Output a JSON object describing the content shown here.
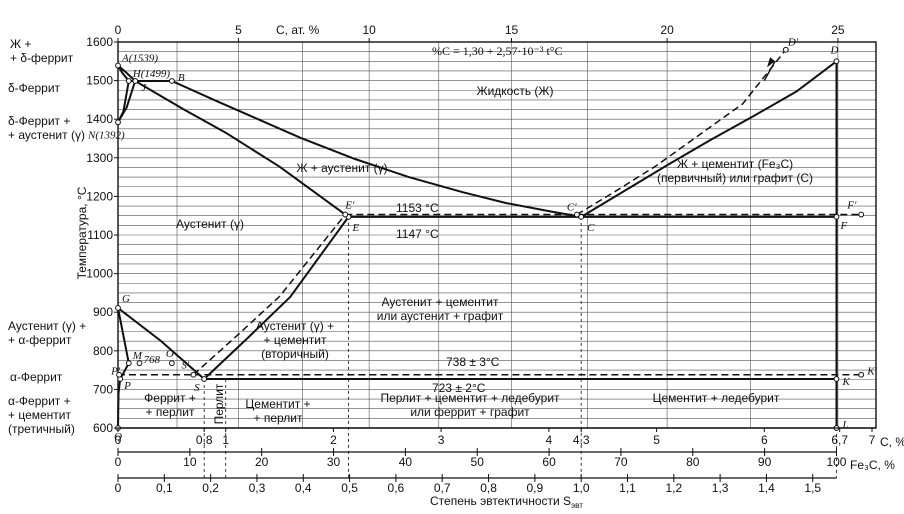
{
  "chart_data": {
    "type": "line",
    "title": "",
    "formula": "%C = 1,30 + 2,57·10⁻³ t°C",
    "ylabel": "Температура, °C",
    "ylim": [
      600,
      1600
    ],
    "y_ticks": [
      "600",
      "700",
      "800",
      "900",
      "1000",
      "1100",
      "1200",
      "1300",
      "1400",
      "1500",
      "1600"
    ],
    "x_main": {
      "label": "C, %",
      "range": [
        0,
        7
      ],
      "ticks": [
        {
          "v": 0,
          "t": "0"
        },
        {
          "v": 0.8,
          "t": "0,8"
        },
        {
          "v": 1,
          "t": "1"
        },
        {
          "v": 2,
          "t": "2"
        },
        {
          "v": 3,
          "t": "3"
        },
        {
          "v": 4,
          "t": "4"
        },
        {
          "v": 4.3,
          "t": "4,3"
        },
        {
          "v": 5,
          "t": "5"
        },
        {
          "v": 6,
          "t": "6"
        },
        {
          "v": 6.7,
          "t": "6,7"
        },
        {
          "v": 7,
          "t": "7"
        }
      ]
    },
    "x_top": {
      "label": "C, ат. %",
      "ticks": [
        {
          "v": 0,
          "t": "0"
        },
        {
          "v": 5,
          "t": "5"
        },
        {
          "v": 10,
          "t": "10"
        },
        {
          "v": 15,
          "t": "15"
        },
        {
          "v": 20,
          "t": "20"
        },
        {
          "v": 25,
          "t": "25"
        }
      ]
    },
    "x_fe3c": {
      "label": "Fe₃C, %",
      "ticks": [
        "0",
        "10",
        "20",
        "30",
        "40",
        "50",
        "60",
        "70",
        "80",
        "90",
        "100"
      ]
    },
    "x_eut": {
      "label": "Степень эвтектичности S",
      "label_sub": "эвт",
      "ticks": [
        "0",
        "0,1",
        "0,2",
        "0,3",
        "0,4",
        "0,5",
        "0,6",
        "0,7",
        "0,8",
        "0,9",
        "1,0",
        "1,1",
        "1,2",
        "1,3",
        "1,4",
        "1,5"
      ]
    },
    "iso_labels": {
      "eutectic_graphite": "1153 °C",
      "eutectic": "1147 °C",
      "eutectoid_graphite": "738 ± 3°C",
      "eutectoid": "723 ± 2°C"
    },
    "points": [
      {
        "name": "A(1539)",
        "x": 0,
        "y": 1539
      },
      {
        "name": "H(1499)",
        "x": 0.1,
        "y": 1499
      },
      {
        "name": "B",
        "x": 0.5,
        "y": 1499
      },
      {
        "name": "J",
        "x": 0.16,
        "y": 1499
      },
      {
        "name": "N(1392)",
        "x": 0,
        "y": 1392
      },
      {
        "name": "E",
        "x": 2.14,
        "y": 1147
      },
      {
        "name": "E'",
        "x": 2.11,
        "y": 1153
      },
      {
        "name": "C",
        "x": 4.3,
        "y": 1147
      },
      {
        "name": "C'",
        "x": 4.26,
        "y": 1153
      },
      {
        "name": "D",
        "x": 6.67,
        "y": 1550
      },
      {
        "name": "D'",
        "x": 6.2,
        "y": 1580
      },
      {
        "name": "F",
        "x": 6.67,
        "y": 1147
      },
      {
        "name": "F'",
        "x": 6.9,
        "y": 1153
      },
      {
        "name": "G",
        "x": 0,
        "y": 911
      },
      {
        "name": "M",
        "x": 0.1,
        "y": 768
      },
      {
        "name": "768",
        "x": 0.2,
        "y": 768
      },
      {
        "name": "O",
        "x": 0.5,
        "y": 768
      },
      {
        "name": "S",
        "x": 0.8,
        "y": 727
      },
      {
        "name": "S'",
        "x": 0.7,
        "y": 738
      },
      {
        "name": "P",
        "x": 0.02,
        "y": 727
      },
      {
        "name": "P'",
        "x": 0.01,
        "y": 738
      },
      {
        "name": "K",
        "x": 6.67,
        "y": 727
      },
      {
        "name": "K'",
        "x": 6.9,
        "y": 738
      },
      {
        "name": "Q",
        "x": 0,
        "y": 600
      },
      {
        "name": "L",
        "x": 6.67,
        "y": 600
      }
    ],
    "series": [
      {
        "style": "solid",
        "values": [
          [
            0.1,
            1499
          ],
          [
            0.5,
            1499
          ],
          [
            0.9,
            1449
          ],
          [
            1.3,
            1400
          ],
          [
            1.7,
            1351
          ],
          [
            2.2,
            1297
          ],
          [
            2.7,
            1250
          ],
          [
            3.2,
            1211
          ],
          [
            3.6,
            1183
          ],
          [
            4.0,
            1162
          ],
          [
            4.3,
            1147
          ]
        ]
      },
      {
        "style": "solid",
        "values": [
          [
            4.3,
            1147
          ],
          [
            4.7,
            1214
          ],
          [
            5.1,
            1281
          ],
          [
            5.5,
            1346
          ],
          [
            5.9,
            1408
          ],
          [
            6.3,
            1472
          ],
          [
            6.67,
            1550
          ]
        ]
      },
      {
        "style": "solid",
        "values": [
          [
            0,
            1539
          ],
          [
            0.04,
            1520
          ],
          [
            0.1,
            1499
          ]
        ]
      },
      {
        "style": "solid",
        "values": [
          [
            0,
            1539
          ],
          [
            0.08,
            1520
          ],
          [
            0.16,
            1499
          ]
        ]
      },
      {
        "style": "solid",
        "values": [
          [
            0,
            1392
          ],
          [
            0.05,
            1420
          ],
          [
            0.1,
            1499
          ]
        ]
      },
      {
        "style": "solid",
        "values": [
          [
            0,
            1392
          ],
          [
            0.08,
            1430
          ],
          [
            0.16,
            1499
          ]
        ]
      },
      {
        "style": "solid",
        "values": [
          [
            0.16,
            1499
          ],
          [
            0.6,
            1427
          ],
          [
            1.0,
            1365
          ],
          [
            1.5,
            1277
          ],
          [
            2.14,
            1147
          ]
        ]
      },
      {
        "style": "solid",
        "values": [
          [
            2.14,
            1147
          ],
          [
            6.67,
            1147
          ]
        ]
      },
      {
        "style": "solid",
        "values": [
          [
            0.8,
            727
          ],
          [
            6.67,
            727
          ]
        ]
      },
      {
        "style": "solid",
        "values": [
          [
            0,
            911
          ],
          [
            0.4,
            825
          ],
          [
            0.8,
            727
          ]
        ]
      },
      {
        "style": "solid",
        "values": [
          [
            0.8,
            727
          ],
          [
            1.2,
            832
          ],
          [
            1.6,
            940
          ],
          [
            2.14,
            1147
          ]
        ]
      },
      {
        "style": "solid",
        "values": [
          [
            0,
            911
          ],
          [
            0.1,
            768
          ],
          [
            0.02,
            727
          ]
        ]
      },
      {
        "style": "solid",
        "values": [
          [
            0,
            600
          ],
          [
            0.005,
            690
          ],
          [
            0.02,
            727
          ]
        ]
      },
      {
        "style": "solid",
        "values": [
          [
            6.67,
            600
          ],
          [
            6.67,
            1550
          ]
        ]
      },
      {
        "style": "dashed",
        "values": [
          [
            2.11,
            1153
          ],
          [
            6.9,
            1153
          ]
        ]
      },
      {
        "style": "dashed",
        "values": [
          [
            0.7,
            738
          ],
          [
            6.9,
            738
          ]
        ]
      },
      {
        "style": "dashed",
        "values": [
          [
            0.7,
            738
          ],
          [
            1.1,
            838
          ],
          [
            1.5,
            941
          ],
          [
            2.11,
            1153
          ]
        ]
      },
      {
        "style": "dashed",
        "values": [
          [
            4.26,
            1153
          ],
          [
            4.6,
            1210
          ],
          [
            5.0,
            1280
          ],
          [
            5.4,
            1360
          ],
          [
            5.8,
            1440
          ],
          [
            6.2,
            1580
          ]
        ]
      },
      {
        "style": "dashed",
        "values": [
          [
            0,
            738
          ],
          [
            0.7,
            738
          ]
        ]
      }
    ],
    "drop_lines": [
      0.8,
      1.0,
      2.14,
      4.3,
      6.67
    ],
    "regions": {
      "liquid_ferrite": "Ж +\n+ δ-феррит",
      "delta_ferrite": "δ-Феррит",
      "delta_austenite": "δ-Феррит +\n+ аустенит (γ)",
      "austenite_ferrite": "Аустенит (γ) +\n+ α-феррит",
      "alpha_ferrite": "α-Феррит",
      "alpha_cementite": "α-Феррит +\n+ цементит\n(третичный)",
      "liquid": "Жидкость (Ж)",
      "liquid_austenite": "Ж + аустенит (γ)",
      "liquid_cementite": "Ж + цементит (Fe₃C)\n(первичный) или графит (С)",
      "austenite": "Аустенит (γ)",
      "aust_cement_secondary": "Аустенит (γ) +\n+ цементит\n(вторичный)",
      "aust_cement_graphite": "Аустенит + цементит\nили аустенит + графит",
      "ferrite_pearlite": "Феррит +\n+ перлит",
      "pearlite": "Перлит",
      "cementite_pearlite": "Цементит +\n+ перлит",
      "pearlite_cementite_ledeburite": "Перлит + цементит + ледебурит\nили феррит + графит",
      "cementite_ledeburite": "Цементит + ледебурит"
    }
  }
}
